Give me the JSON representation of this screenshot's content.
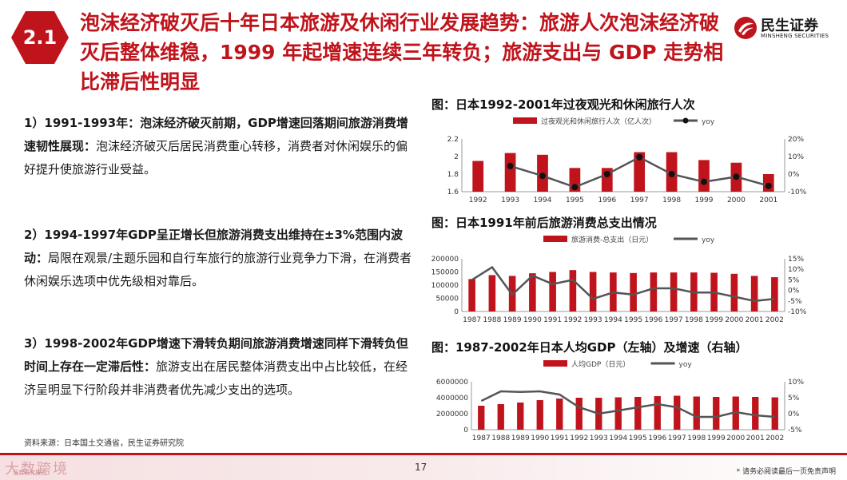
{
  "header": {
    "section": "2.1",
    "title": "泡沫经济破灭后十年日本旅游及休闲行业发展趋势：旅游人次泡沫经济破灭后整体维稳，1999 年起增速连续三年转负；旅游支出与 GDP 走势相比滞后性明显",
    "logo_cn": "民生证券",
    "logo_en": "MINSHENG SECURITIES"
  },
  "points": [
    {
      "bold": "1）1991-1993年：泡沫经济破灭前期，GDP增速回落期间旅游消费增速韧性展现：",
      "text": "泡沫经济破灭后居民消费重心转移，消费者对休闲娱乐的偏好提升使旅游行业受益。"
    },
    {
      "bold": "2）1994-1997年GDP呈正增长但旅游消费支出维持在±3%范围内波动：",
      "text": "局限在观景/主题乐园和自行车旅行的旅游行业竞争力下滑，在消费者休闲娱乐选项中优先级相对靠后。"
    },
    {
      "bold": "3）1998-2002年GDP增速下滑转负期间旅游消费增速同样下滑转负但时间上存在一定滞后性：",
      "text": "旅游支出在居民整体消费支出中占比较低，在经济呈明显下行阶段并非消费者优先减少支出的选项。"
    }
  ],
  "source": "资料来源：日本国土交通省，民生证券研究院",
  "footer": {
    "page": "17",
    "disclaimer": "* 请务必阅读最后一页免责声明",
    "watermark": "大数跨境",
    "watermark_small": "证券研究报告"
  },
  "colors": {
    "brand": "#c0141c",
    "bar": "#c0141c",
    "line": "#555555"
  },
  "chart_data": [
    {
      "type": "bar",
      "title": "图：日本1992-2001年过夜观光和休闲旅行人次",
      "categories": [
        "1992",
        "1993",
        "1994",
        "1995",
        "1996",
        "1997",
        "1998",
        "1999",
        "2000",
        "2001"
      ],
      "series": [
        {
          "name": "过夜观光和休闲旅行人次（亿人次）",
          "kind": "bar",
          "axis": "left",
          "values": [
            1.95,
            2.04,
            2.02,
            1.87,
            1.87,
            2.05,
            2.05,
            1.96,
            1.93,
            1.8
          ]
        },
        {
          "name": "yoy",
          "kind": "line",
          "axis": "right",
          "values": [
            null,
            4.6,
            -1.0,
            -7.4,
            0.0,
            9.6,
            0.0,
            -4.4,
            -1.5,
            -6.7
          ]
        }
      ],
      "ylim_left": [
        1.6,
        2.2
      ],
      "yticks_left": [
        "1.6",
        "1.8",
        "2",
        "2.2"
      ],
      "ylim_right": [
        -10,
        20
      ],
      "yticks_right": [
        "-10%",
        "0%",
        "10%",
        "20%"
      ],
      "legend": "top"
    },
    {
      "type": "bar",
      "title": "图：日本1991年前后旅游消费总支出情况",
      "categories": [
        "1987",
        "1988",
        "1989",
        "1990",
        "1991",
        "1992",
        "1993",
        "1994",
        "1995",
        "1996",
        "1997",
        "1998",
        "1999",
        "2000",
        "2001",
        "2002"
      ],
      "series": [
        {
          "name": "旅游消费-总支出（日元）",
          "kind": "bar",
          "axis": "left",
          "values": [
            123000,
            138000,
            135000,
            145000,
            150000,
            157000,
            150000,
            148000,
            146000,
            148000,
            148000,
            148000,
            147000,
            143000,
            135000,
            130000
          ]
        },
        {
          "name": "yoy",
          "kind": "line",
          "axis": "right",
          "values": [
            5,
            11,
            -2,
            7,
            3,
            5,
            -4,
            -1,
            -2,
            1,
            1,
            -1,
            -1,
            -3,
            -5,
            -4
          ]
        }
      ],
      "ylim_left": [
        0,
        200000
      ],
      "yticks_left": [
        "0",
        "50000",
        "100000",
        "150000",
        "200000"
      ],
      "ylim_right": [
        -10,
        15
      ],
      "yticks_right": [
        "-10%",
        "-5%",
        "0%",
        "5%",
        "10%",
        "15%"
      ],
      "legend": "top"
    },
    {
      "type": "bar",
      "title": "图：1987-2002年日本人均GDP（左轴）及增速（右轴）",
      "categories": [
        "1987",
        "1988",
        "1989",
        "1990",
        "1991",
        "1992",
        "1993",
        "1994",
        "1995",
        "1996",
        "1997",
        "1998",
        "1999",
        "2000",
        "2001",
        "2002"
      ],
      "series": [
        {
          "name": "人均GDP（日元）",
          "kind": "bar",
          "axis": "left",
          "values": [
            3000000,
            3200000,
            3400000,
            3700000,
            3900000,
            4000000,
            4000000,
            4050000,
            4100000,
            4200000,
            4250000,
            4150000,
            4100000,
            4150000,
            4100000,
            4050000
          ]
        },
        {
          "name": "yoy",
          "kind": "line",
          "axis": "right",
          "values": [
            4,
            7,
            6.8,
            7,
            6,
            2,
            0,
            1,
            2,
            3,
            2,
            -1,
            -1,
            0.5,
            -0.5,
            -1
          ]
        }
      ],
      "ylim_left": [
        0,
        6000000
      ],
      "yticks_left": [
        "0",
        "2000000",
        "4000000",
        "6000000"
      ],
      "ylim_right": [
        -5,
        10
      ],
      "yticks_right": [
        "-5%",
        "0%",
        "5%",
        "10%"
      ],
      "legend": "top"
    }
  ]
}
